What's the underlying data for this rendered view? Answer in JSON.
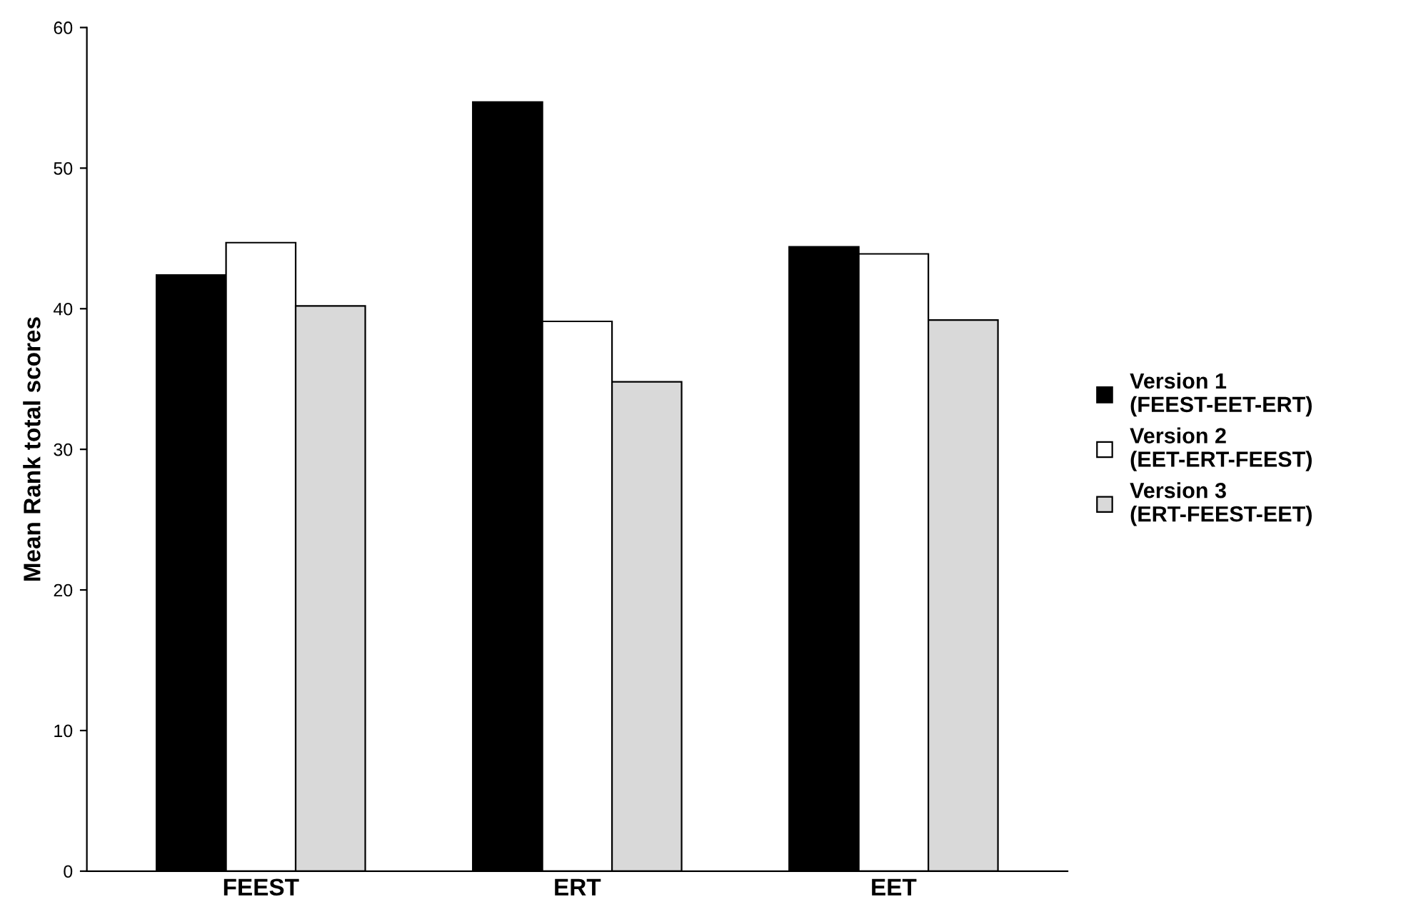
{
  "chart_data": {
    "type": "bar",
    "ylabel": "Mean Rank total scores",
    "categories": [
      "FEEST",
      "ERT",
      "EET"
    ],
    "series": [
      {
        "name": "Version 1\n(FEEST-EET-ERT)",
        "color": "#000000",
        "values": [
          42.4,
          54.7,
          44.4
        ]
      },
      {
        "name": "Version 2\n(EET-ERT-FEEST)",
        "color": "#ffffff",
        "values": [
          44.7,
          39.1,
          43.9
        ]
      },
      {
        "name": "Version 3\n(ERT-FEEST-EET)",
        "color": "#d9d9d9",
        "values": [
          40.2,
          34.8,
          39.2
        ]
      }
    ],
    "ylim": [
      0,
      60
    ],
    "yticks": [
      0,
      10,
      20,
      30,
      40,
      50,
      60
    ],
    "grid": false,
    "legend": "right"
  }
}
